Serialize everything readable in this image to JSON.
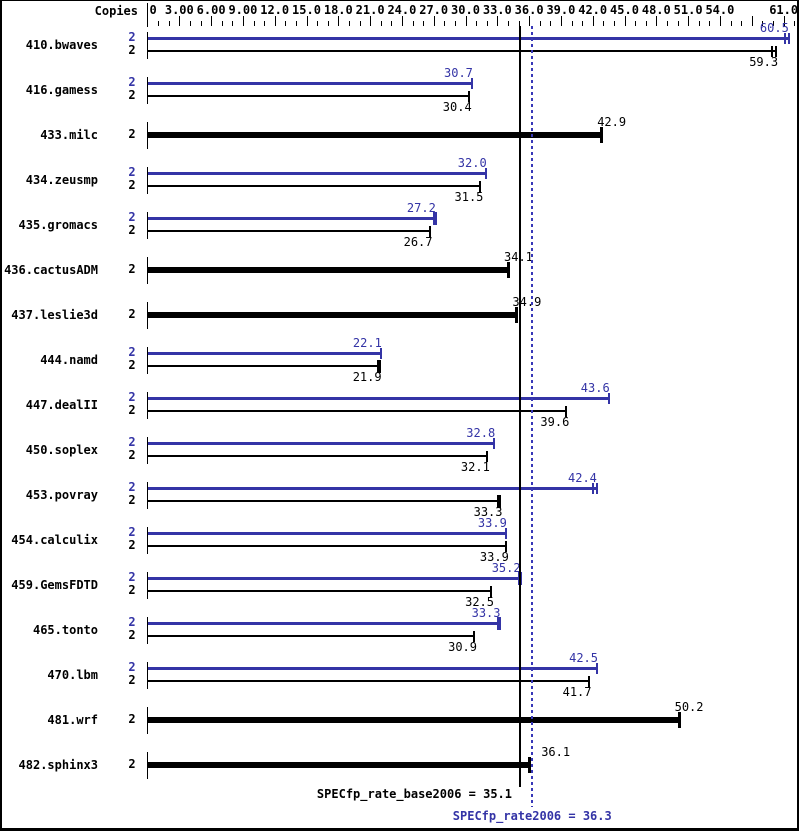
{
  "chart_data": {
    "type": "bar",
    "orientation": "horizontal",
    "copies_header": "Copies",
    "axis": {
      "min": 0,
      "max": 61.0,
      "minor_tick_step": 1,
      "major_tick_step": 3,
      "labeled_tick_values": [
        0,
        3,
        6,
        9,
        12,
        15,
        18,
        21,
        24,
        27,
        30,
        33,
        36,
        39,
        42,
        45,
        48,
        51,
        54,
        61
      ],
      "labeled_tick_texts": [
        "0",
        "3.00",
        "6.00",
        "9.00",
        "12.0",
        "15.0",
        "18.0",
        "21.0",
        "24.0",
        "27.0",
        "30.0",
        "33.0",
        "36.0",
        "39.0",
        "42.0",
        "45.0",
        "48.0",
        "51.0",
        "54.0",
        "61.0"
      ]
    },
    "colors": {
      "base_bar": "#000000",
      "peak_bar": "#3434a6",
      "peak_text": "#3434a6",
      "base_text": "#000000",
      "dotted_reference_line": "#3838b8",
      "solid_reference_line": "#000000",
      "background": "#ffffff"
    },
    "benchmarks": [
      {
        "name": "410.bwaves",
        "bars": [
          {
            "series": "peak",
            "copies": 2,
            "value": 60.5,
            "cap": "double"
          },
          {
            "series": "base",
            "copies": 2,
            "value": 59.3,
            "cap": "double"
          }
        ]
      },
      {
        "name": "416.gamess",
        "bars": [
          {
            "series": "peak",
            "copies": 2,
            "value": 30.7,
            "cap": "normal"
          },
          {
            "series": "base",
            "copies": 2,
            "value": 30.4,
            "cap": "normal"
          }
        ]
      },
      {
        "name": "433.milc",
        "bars": [
          {
            "series": "base",
            "copies": 2,
            "value": 42.9,
            "thick": true
          }
        ]
      },
      {
        "name": "434.zeusmp",
        "bars": [
          {
            "series": "peak",
            "copies": 2,
            "value": 32.0,
            "cap": "normal"
          },
          {
            "series": "base",
            "copies": 2,
            "value": 31.5,
            "cap": "normal"
          }
        ]
      },
      {
        "name": "435.gromacs",
        "bars": [
          {
            "series": "peak",
            "copies": 2,
            "value": 27.2,
            "cap": "bold"
          },
          {
            "series": "base",
            "copies": 2,
            "value": 26.7,
            "cap": "normal"
          }
        ]
      },
      {
        "name": "436.cactusADM",
        "bars": [
          {
            "series": "base",
            "copies": 2,
            "value": 34.1,
            "thick": true
          }
        ]
      },
      {
        "name": "437.leslie3d",
        "bars": [
          {
            "series": "base",
            "copies": 2,
            "value": 34.9,
            "thick": true
          }
        ]
      },
      {
        "name": "444.namd",
        "bars": [
          {
            "series": "peak",
            "copies": 2,
            "value": 22.1,
            "cap": "normal"
          },
          {
            "series": "base",
            "copies": 2,
            "value": 21.9,
            "cap": "bold"
          }
        ]
      },
      {
        "name": "447.dealII",
        "bars": [
          {
            "series": "peak",
            "copies": 2,
            "value": 43.6,
            "cap": "normal"
          },
          {
            "series": "base",
            "copies": 2,
            "value": 39.6,
            "cap": "normal"
          }
        ]
      },
      {
        "name": "450.soplex",
        "bars": [
          {
            "series": "peak",
            "copies": 2,
            "value": 32.8,
            "cap": "normal"
          },
          {
            "series": "base",
            "copies": 2,
            "value": 32.1,
            "cap": "normal"
          }
        ]
      },
      {
        "name": "453.povray",
        "bars": [
          {
            "series": "peak",
            "copies": 2,
            "value": 42.4,
            "cap": "double"
          },
          {
            "series": "base",
            "copies": 2,
            "value": 33.3,
            "cap": "bold"
          }
        ]
      },
      {
        "name": "454.calculix",
        "bars": [
          {
            "series": "peak",
            "copies": 2,
            "value": 33.9,
            "cap": "normal"
          },
          {
            "series": "base",
            "copies": 2,
            "value": 33.9,
            "cap": "normal"
          }
        ]
      },
      {
        "name": "459.GemsFDTD",
        "bars": [
          {
            "series": "peak",
            "copies": 2,
            "value": 35.2,
            "cap": "bold"
          },
          {
            "series": "base",
            "copies": 2,
            "value": 32.5,
            "cap": "normal"
          }
        ]
      },
      {
        "name": "465.tonto",
        "bars": [
          {
            "series": "peak",
            "copies": 2,
            "value": 33.3,
            "cap": "bold"
          },
          {
            "series": "base",
            "copies": 2,
            "value": 30.9,
            "cap": "normal"
          }
        ]
      },
      {
        "name": "470.lbm",
        "bars": [
          {
            "series": "peak",
            "copies": 2,
            "value": 42.5,
            "cap": "normal"
          },
          {
            "series": "base",
            "copies": 2,
            "value": 41.7,
            "cap": "normal"
          }
        ]
      },
      {
        "name": "481.wrf",
        "bars": [
          {
            "series": "base",
            "copies": 2,
            "value": 50.2,
            "thick": true
          }
        ]
      },
      {
        "name": "482.sphinx3",
        "bars": [
          {
            "series": "base",
            "copies": 2,
            "value": 36.1,
            "thick": true,
            "value_label_offset": 16
          }
        ]
      }
    ],
    "summary": {
      "base": {
        "label": "SPECfp_rate_base2006 = 35.1",
        "value": 35.1
      },
      "peak": {
        "label": "SPECfp_rate2006 = 36.3",
        "value": 36.3
      }
    }
  }
}
